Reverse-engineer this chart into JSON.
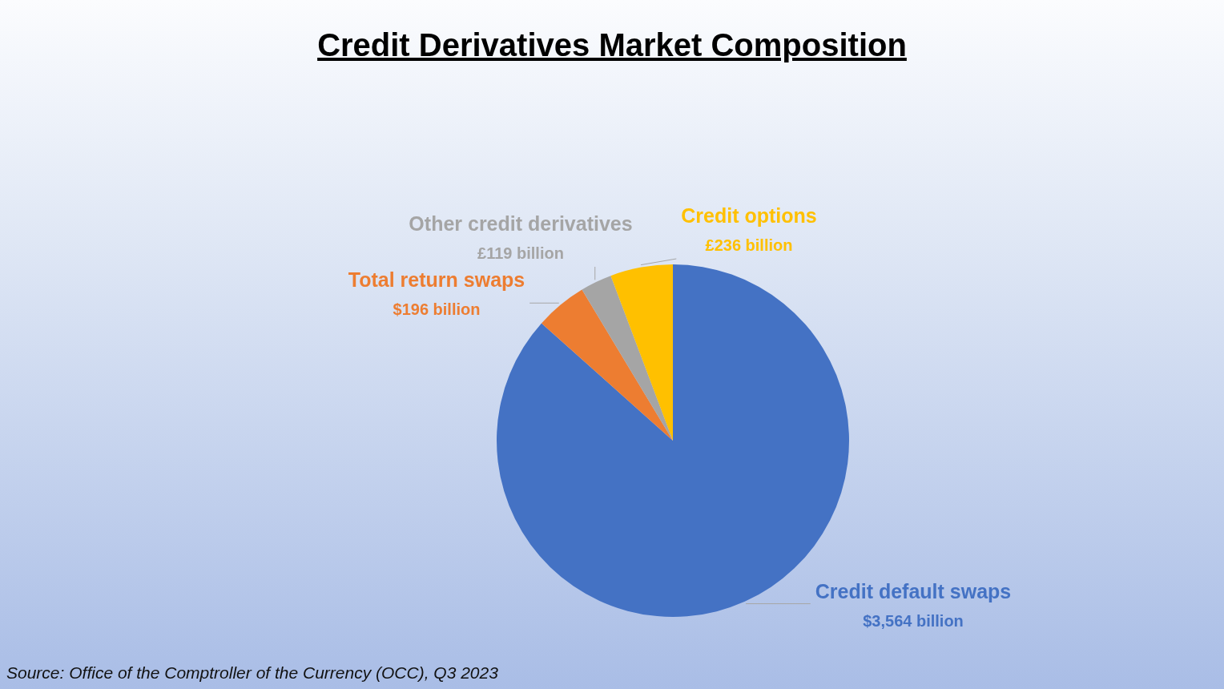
{
  "chart_data": {
    "type": "pie",
    "title": "Credit Derivatives Market Composition",
    "categories": [
      "Credit default swaps",
      "Total return swaps",
      "Other credit derivatives",
      "Credit options"
    ],
    "values": [
      3564,
      196,
      119,
      236
    ],
    "colors": [
      "#4472c4",
      "#ed7d31",
      "#a5a5a5",
      "#ffc000"
    ],
    "value_labels": [
      "$3,564 billion",
      "$196 billion",
      "£119 billion",
      "£236 billion"
    ],
    "annotations": [
      "Source: Office of the Comptroller of the Currency (OCC), Q3 2023"
    ]
  }
}
